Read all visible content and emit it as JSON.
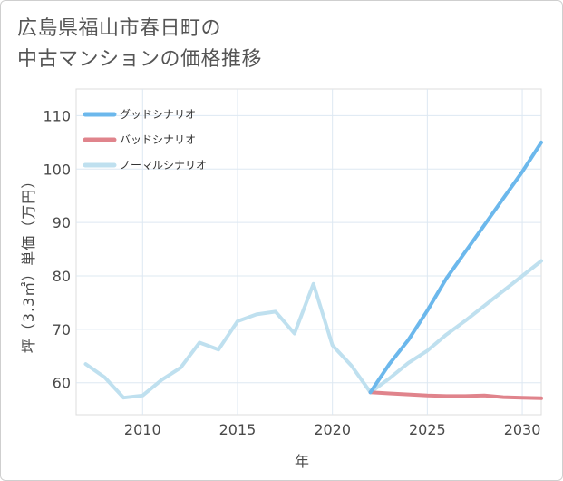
{
  "title_lines": [
    "広島県福山市春日町の",
    "中古マンションの価格推移"
  ],
  "chart_data": {
    "type": "line",
    "xlabel": "年",
    "ylabel": "坪（3.3㎡）単価（万円）",
    "xlim": [
      2006.5,
      2031
    ],
    "ylim": [
      54,
      115
    ],
    "x_ticks": [
      2010,
      2015,
      2020,
      2025,
      2030
    ],
    "y_ticks": [
      60,
      70,
      80,
      90,
      100,
      110
    ],
    "grid": true,
    "legend_position": "top-left",
    "series": [
      {
        "name": "グッドシナリオ",
        "color": "#6cb8ec",
        "x": [
          2022,
          2023,
          2024,
          2025,
          2026,
          2027,
          2028,
          2029,
          2030,
          2031
        ],
        "y": [
          58.2,
          63.5,
          68.0,
          73.5,
          79.5,
          84.5,
          89.5,
          94.5,
          99.5,
          105.0
        ]
      },
      {
        "name": "バッドシナリオ",
        "color": "#e0848c",
        "x": [
          2022,
          2023,
          2024,
          2025,
          2026,
          2027,
          2028,
          2029,
          2030,
          2031
        ],
        "y": [
          58.2,
          58.0,
          57.8,
          57.6,
          57.5,
          57.5,
          57.6,
          57.3,
          57.2,
          57.1
        ]
      },
      {
        "name": "ノーマルシナリオ",
        "color": "#bfe0ef",
        "x": [
          2007,
          2008,
          2009,
          2010,
          2011,
          2012,
          2013,
          2014,
          2015,
          2016,
          2017,
          2018,
          2019,
          2020,
          2021,
          2022,
          2023,
          2024,
          2025,
          2026,
          2027,
          2028,
          2029,
          2030,
          2031
        ],
        "y": [
          63.5,
          61.0,
          57.2,
          57.6,
          60.5,
          62.8,
          67.5,
          66.2,
          71.5,
          72.8,
          73.3,
          69.2,
          78.5,
          67.0,
          63.2,
          58.2,
          60.8,
          63.7,
          66.0,
          69.0,
          71.6,
          74.4,
          77.2,
          80.0,
          82.8
        ]
      }
    ]
  }
}
